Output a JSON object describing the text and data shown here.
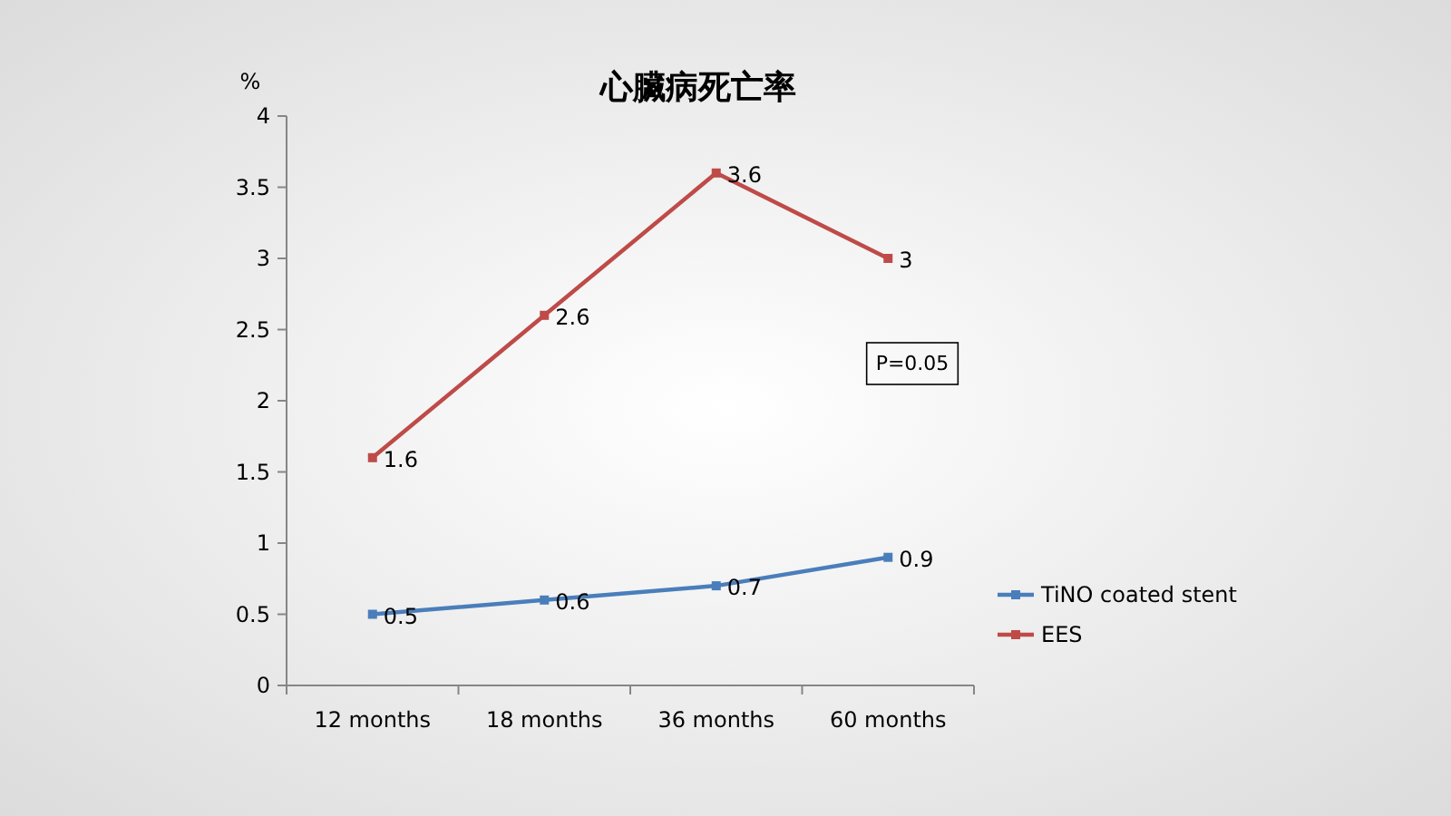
{
  "chart_data": {
    "type": "line",
    "title": "心臟病死亡率",
    "ylabel": "%",
    "categories": [
      "12 months",
      "18 months",
      "36 months",
      "60 months"
    ],
    "series": [
      {
        "name": "TiNO coated stent",
        "color": "#4a7ebb",
        "values": [
          0.5,
          0.6,
          0.7,
          0.9
        ]
      },
      {
        "name": "EES",
        "color": "#be4b48",
        "values": [
          1.6,
          2.6,
          3.6,
          3
        ]
      }
    ],
    "ylim": [
      0,
      4
    ],
    "yticks": [
      0,
      0.5,
      1,
      1.5,
      2,
      2.5,
      3,
      3.5,
      4
    ],
    "annotations": [
      "P=0.05"
    ],
    "data_labels": true,
    "legend": "right",
    "marker": "square",
    "line_style": "solid",
    "grid": false
  }
}
